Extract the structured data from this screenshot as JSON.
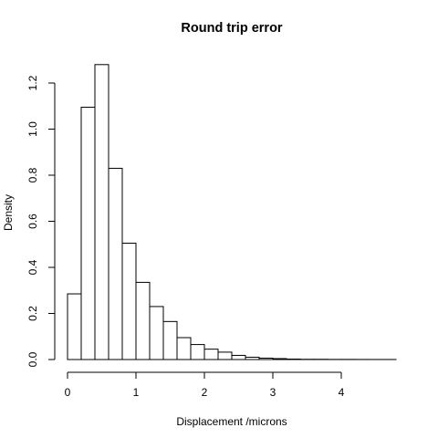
{
  "chart_data": {
    "type": "bar",
    "subtype": "histogram",
    "title": "Round trip error",
    "xlabel": "Displacement /microns",
    "ylabel": "Density",
    "bin_width": 0.2,
    "bins": [
      {
        "start": 0.0,
        "end": 0.2,
        "density": 0.285
      },
      {
        "start": 0.2,
        "end": 0.4,
        "density": 1.095
      },
      {
        "start": 0.4,
        "end": 0.6,
        "density": 1.28
      },
      {
        "start": 0.6,
        "end": 0.8,
        "density": 0.83
      },
      {
        "start": 0.8,
        "end": 1.0,
        "density": 0.505
      },
      {
        "start": 1.0,
        "end": 1.2,
        "density": 0.335
      },
      {
        "start": 1.2,
        "end": 1.4,
        "density": 0.23
      },
      {
        "start": 1.4,
        "end": 1.6,
        "density": 0.165
      },
      {
        "start": 1.6,
        "end": 1.8,
        "density": 0.095
      },
      {
        "start": 1.8,
        "end": 2.0,
        "density": 0.065
      },
      {
        "start": 2.0,
        "end": 2.2,
        "density": 0.045
      },
      {
        "start": 2.2,
        "end": 2.4,
        "density": 0.032
      },
      {
        "start": 2.4,
        "end": 2.6,
        "density": 0.018
      },
      {
        "start": 2.6,
        "end": 2.8,
        "density": 0.01
      },
      {
        "start": 2.8,
        "end": 3.0,
        "density": 0.006
      },
      {
        "start": 3.0,
        "end": 3.2,
        "density": 0.004
      },
      {
        "start": 3.2,
        "end": 3.4,
        "density": 0.002
      },
      {
        "start": 3.4,
        "end": 3.6,
        "density": 0.001
      },
      {
        "start": 3.6,
        "end": 3.8,
        "density": 0.001
      },
      {
        "start": 3.8,
        "end": 4.0,
        "density": 0.0005
      },
      {
        "start": 4.0,
        "end": 4.2,
        "density": 0.0005
      },
      {
        "start": 4.2,
        "end": 4.4,
        "density": 0.0003
      },
      {
        "start": 4.4,
        "end": 4.6,
        "density": 0.0002
      },
      {
        "start": 4.6,
        "end": 4.8,
        "density": 0.0002
      }
    ],
    "x_ticks": [
      0,
      1,
      2,
      3,
      4
    ],
    "x_tick_labels": [
      "0",
      "1",
      "2",
      "3",
      "4"
    ],
    "y_ticks": [
      0.0,
      0.2,
      0.4,
      0.6,
      0.8,
      1.0,
      1.2
    ],
    "y_tick_labels": [
      "0.0",
      "0.2",
      "0.4",
      "0.6",
      "0.8",
      "1.0",
      "1.2"
    ],
    "xlim": [
      0,
      4.8
    ],
    "ylim": [
      0,
      1.28
    ],
    "grid": false,
    "legend": "none",
    "colors": {
      "bar_fill": "#ffffff",
      "bar_stroke": "#000000",
      "text": "#000000"
    }
  }
}
